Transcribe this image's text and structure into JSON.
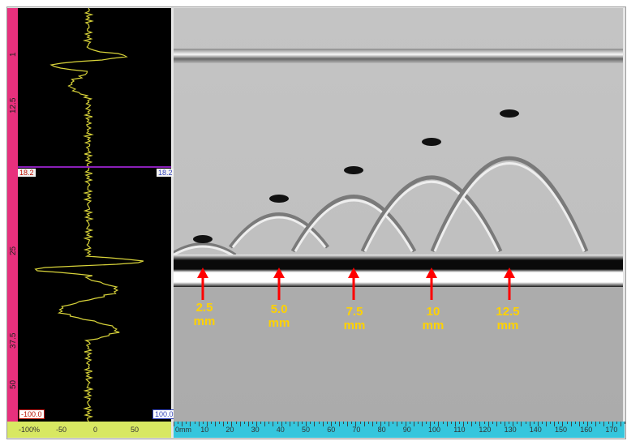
{
  "ascan": {
    "depth_ticks": [
      "1",
      "12.5",
      "25",
      "37.5",
      "50"
    ],
    "gate_left_label": "18.2",
    "gate_right_label": "18.2",
    "bottom_left_label": "-100.0",
    "bottom_right_label": "100.0",
    "amplitude_scale": [
      "-100%",
      "-50",
      "0",
      "50"
    ]
  },
  "bscan": {
    "position_scale": [
      "0mm",
      "10",
      "20",
      "30",
      "40",
      "50",
      "60",
      "70",
      "80",
      "90",
      "100",
      "110",
      "120",
      "130",
      "140",
      "150",
      "160",
      "170"
    ],
    "defects": [
      {
        "size": "2.5",
        "unit": "mm"
      },
      {
        "size": "5.0",
        "unit": "mm"
      },
      {
        "size": "7.5",
        "unit": "mm"
      },
      {
        "size": "10",
        "unit": "mm"
      },
      {
        "size": "12.5",
        "unit": "mm"
      }
    ]
  },
  "colors": {
    "depth_ruler": "#e8307d",
    "amplitude_scale": "#d8e862",
    "position_scale": "#35c6dd",
    "waveform": "#d9d43a",
    "marker_arrow": "#ff0000",
    "label": "#ffd200",
    "gate": "#8a1fb8"
  }
}
